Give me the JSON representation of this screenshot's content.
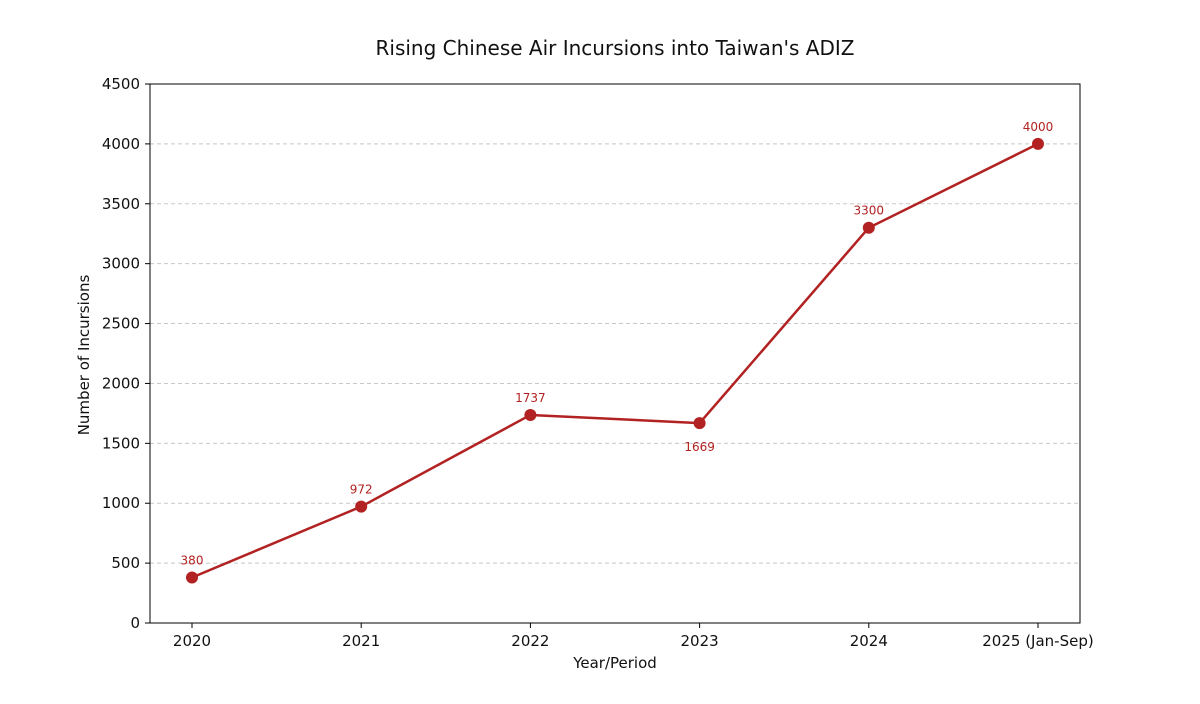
{
  "chart_data": {
    "type": "line",
    "title": "Rising Chinese Air Incursions into Taiwan's ADIZ",
    "xlabel": "Year/Period",
    "ylabel": "Number of Incursions",
    "categories": [
      "2020",
      "2021",
      "2022",
      "2023",
      "2024",
      "2025 (Jan-Sep)"
    ],
    "series": [
      {
        "values": [
          380,
          972,
          1737,
          1669,
          3300,
          4000
        ],
        "color": "#b22222",
        "marker": "circle",
        "data_labels": [
          "380",
          "972",
          "1737",
          "1669",
          "3300",
          "4000"
        ],
        "data_label_placement": [
          "above",
          "above",
          "above",
          "below",
          "above",
          "above"
        ]
      }
    ],
    "ylim": [
      0,
      4500
    ],
    "yticks": [
      0,
      500,
      1000,
      1500,
      2000,
      2500,
      3000,
      3500,
      4000,
      4500
    ],
    "grid": "horizontal dashed",
    "legend": "none"
  }
}
